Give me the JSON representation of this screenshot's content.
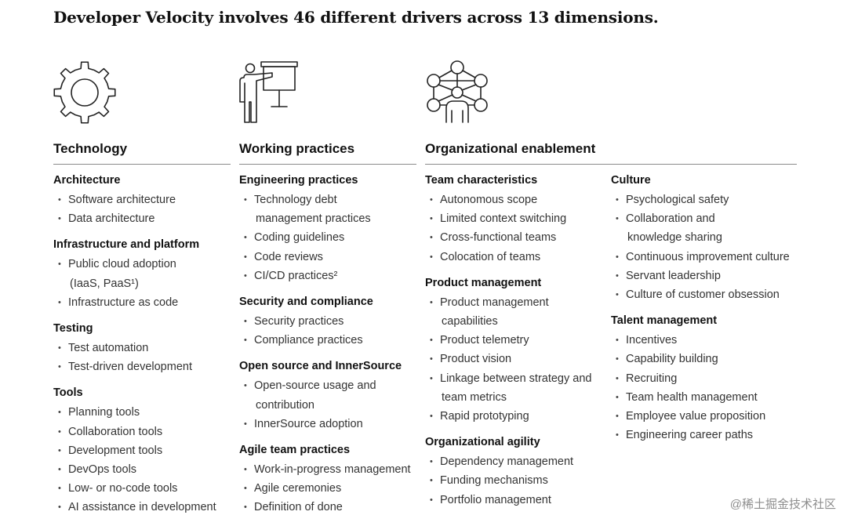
{
  "title": "Developer Velocity involves 46 different drivers across 13 dimensions.",
  "sections": {
    "technology": "Technology",
    "working_practices": "Working practices",
    "organizational_enablement": "Organizational enablement"
  },
  "icons": {
    "technology": "gear-icon",
    "working_practices": "presenter-board-icon",
    "organizational_enablement": "network-people-icon"
  },
  "columns": [
    {
      "groups": [
        {
          "heading": "Architecture",
          "items": [
            "Software architecture",
            "Data architecture"
          ]
        },
        {
          "heading": "Infrastructure and platform",
          "items": [
            "Public cloud adoption\n(IaaS, PaaS¹)",
            "Infrastructure as code"
          ]
        },
        {
          "heading": "Testing",
          "items": [
            "Test automation",
            "Test-driven development"
          ]
        },
        {
          "heading": "Tools",
          "items": [
            "Planning tools",
            "Collaboration tools",
            "Development tools",
            "DevOps tools",
            "Low- or no-code tools",
            "AI assistance in development"
          ]
        }
      ]
    },
    {
      "groups": [
        {
          "heading": "Engineering practices",
          "items": [
            "Technology debt\nmanagement practices",
            "Coding guidelines",
            "Code reviews",
            "CI/CD practices²"
          ]
        },
        {
          "heading": "Security and compliance",
          "items": [
            "Security practices",
            "Compliance practices"
          ]
        },
        {
          "heading": "Open source and InnerSource",
          "items": [
            "Open-source usage and\ncontribution",
            "InnerSource adoption"
          ]
        },
        {
          "heading": "Agile team practices",
          "items": [
            "Work-in-progress management",
            "Agile ceremonies",
            "Definition of done"
          ]
        }
      ]
    },
    {
      "groups": [
        {
          "heading": "Team characteristics",
          "items": [
            "Autonomous scope",
            "Limited context switching",
            "Cross-functional teams",
            "Colocation of teams"
          ]
        },
        {
          "heading": "Product management",
          "items": [
            "Product management\ncapabilities",
            "Product telemetry",
            "Product vision",
            "Linkage between strategy and\nteam metrics",
            "Rapid prototyping"
          ]
        },
        {
          "heading": "Organizational agility",
          "items": [
            "Dependency management",
            "Funding mechanisms",
            "Portfolio management"
          ]
        }
      ]
    },
    {
      "groups": [
        {
          "heading": "Culture",
          "items": [
            "Psychological safety",
            "Collaboration and\nknowledge sharing",
            "Continuous improvement culture",
            "Servant leadership",
            "Culture of customer obsession"
          ]
        },
        {
          "heading": "Talent management",
          "items": [
            "Incentives",
            "Capability building",
            "Recruiting",
            "Team health management",
            "Employee value proposition",
            "Engineering career paths"
          ]
        }
      ]
    }
  ],
  "watermark": "@稀土掘金技术社区"
}
